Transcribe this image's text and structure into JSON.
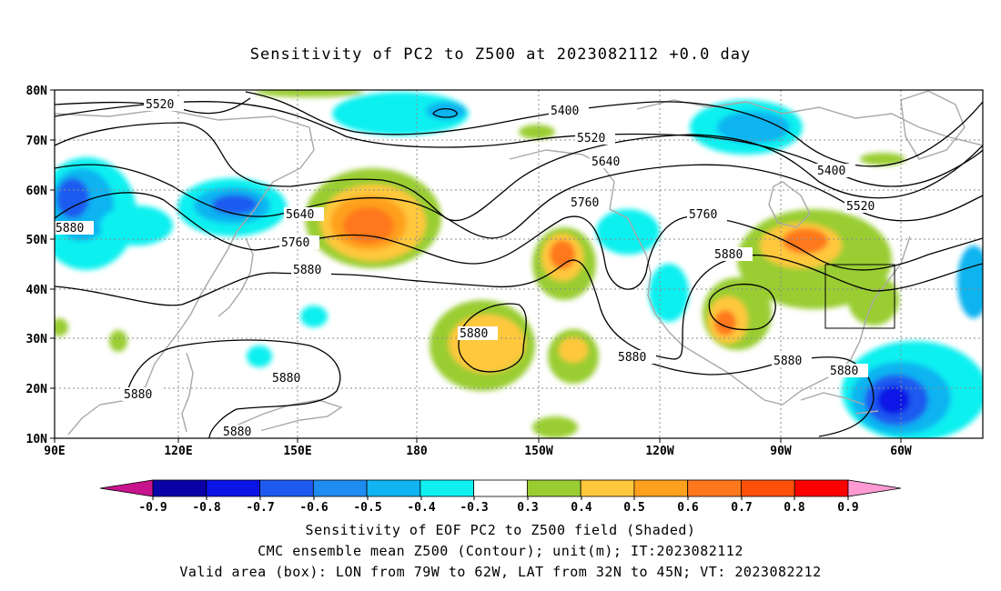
{
  "title": "Sensitivity of PC2 to Z500 at 2023082112 +0.0 day",
  "latitudes": [
    "80N",
    "70N",
    "60N",
    "50N",
    "40N",
    "30N",
    "20N",
    "10N"
  ],
  "longitudes": [
    "90E",
    "120E",
    "150E",
    "180",
    "150W",
    "120W",
    "90W",
    "60W"
  ],
  "contour_labels": [
    "5520",
    "5400",
    "5520",
    "5640",
    "5400",
    "5520",
    "5640",
    "5760",
    "5760",
    "5760",
    "5880",
    "5880",
    "5880",
    "5880",
    "5880",
    "5880",
    "5880",
    "5880",
    "5880"
  ],
  "colorbar": {
    "labels": [
      "-0.9",
      "-0.8",
      "-0.7",
      "-0.6",
      "-0.5",
      "-0.4",
      "-0.3",
      "0.3",
      "0.4",
      "0.5",
      "0.6",
      "0.7",
      "0.8",
      "0.9"
    ],
    "colors": [
      "#0a00a8",
      "#0a14e6",
      "#1e5af0",
      "#1e8cf0",
      "#10b4f0",
      "#10f0f0",
      "#ffffff",
      "#9acd32",
      "#ffc83c",
      "#ffa01e",
      "#ff781e",
      "#ff500a",
      "#ff0000"
    ],
    "low_end_color": "#c8148c",
    "high_end_color": "#ff9bd2"
  },
  "valid_box": {
    "lon_from": "79W",
    "lon_to": "62W",
    "lat_from": "32N",
    "lat_to": "45N"
  },
  "caption": {
    "line1": "Sensitivity of EOF PC2 to Z500 field (Shaded)",
    "line2": "CMC ensemble mean Z500 (Contour); unit(m); IT:2023082112",
    "line3": "Valid area (box): LON from 79W to 62W, LAT from 32N to 45N; VT: 2023082212"
  }
}
